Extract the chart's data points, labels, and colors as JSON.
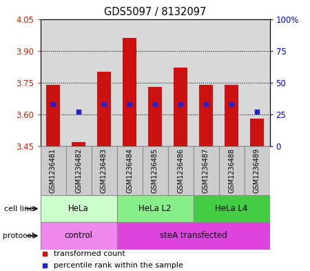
{
  "title": "GDS5097 / 8132097",
  "samples": [
    "GSM1236481",
    "GSM1236482",
    "GSM1236483",
    "GSM1236484",
    "GSM1236485",
    "GSM1236486",
    "GSM1236487",
    "GSM1236488",
    "GSM1236489"
  ],
  "transformed_counts": [
    3.74,
    3.47,
    3.8,
    3.96,
    3.73,
    3.82,
    3.74,
    3.74,
    3.58
  ],
  "percentile_ranks": [
    33,
    27,
    33,
    33,
    33,
    33,
    33,
    33,
    27
  ],
  "ymin": 3.45,
  "ymax": 4.05,
  "yticks_left": [
    3.45,
    3.6,
    3.75,
    3.9,
    4.05
  ],
  "yticks_right": [
    0,
    25,
    50,
    75,
    100
  ],
  "bar_color": "#cc1111",
  "dot_color": "#2222cc",
  "cell_line_groups": [
    {
      "label": "HeLa",
      "start": 0,
      "end": 3,
      "color": "#ccffcc"
    },
    {
      "label": "HeLa L2",
      "start": 3,
      "end": 6,
      "color": "#88ee88"
    },
    {
      "label": "HeLa L4",
      "start": 6,
      "end": 9,
      "color": "#44cc44"
    }
  ],
  "protocol_groups": [
    {
      "label": "control",
      "start": 0,
      "end": 3,
      "color": "#ee88ee"
    },
    {
      "label": "steA transfected",
      "start": 3,
      "end": 9,
      "color": "#dd44dd"
    }
  ],
  "legend_items": [
    {
      "color": "#cc1111",
      "label": "transformed count"
    },
    {
      "color": "#2222cc",
      "label": "percentile rank within the sample"
    }
  ]
}
